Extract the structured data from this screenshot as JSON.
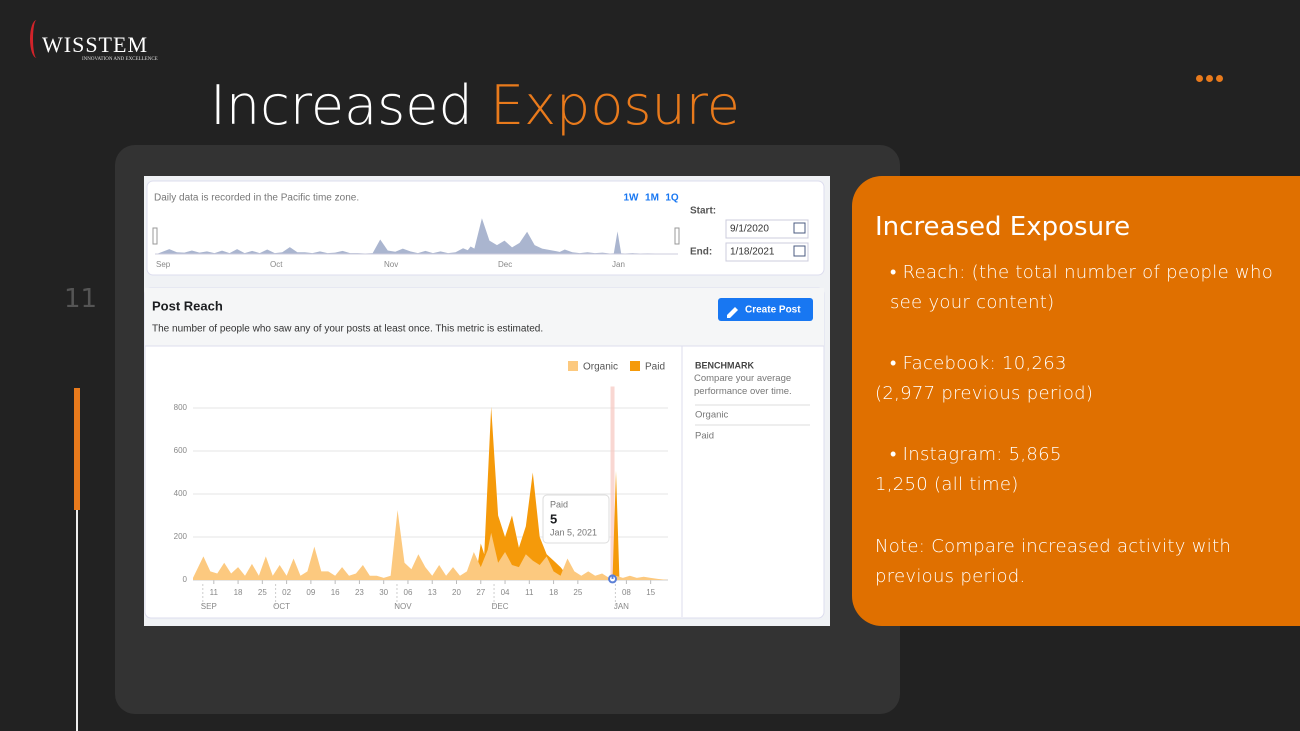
{
  "logo": {
    "name": "WISSTEM",
    "tagline": "INNOVATION AND EXCELLENCE"
  },
  "slide": {
    "title_main": "Increased",
    "title_accent": "Exposure",
    "page_number": "11"
  },
  "panel": {
    "heading": "Increased Exposure",
    "reach": "Reach: (the total number of people who see your content)",
    "facebook": "Facebook: 10,263",
    "facebook_previous": "(2,977 previous period)",
    "instagram": "Instagram: 5,865",
    "instagram_all_time": "1,250 (all time)",
    "note": "Note: Compare increased activity with previous period."
  },
  "screenshot": {
    "timezone_note": "Daily data is recorded in the Pacific time zone.",
    "ranges": [
      "1W",
      "1M",
      "1Q"
    ],
    "start_label": "Start:",
    "start_date": "9/1/2020",
    "end_label": "End:",
    "end_date": "1/18/2021",
    "navigator_months": [
      "Sep",
      "Oct",
      "Nov",
      "Dec",
      "Jan"
    ],
    "section_title": "Post Reach",
    "create_button": "Create Post",
    "description": "The number of people who saw any of your posts at least once. This metric is estimated.",
    "benchmark_title": "BENCHMARK",
    "benchmark_text": "Compare your average performance over time.",
    "benchmark_items": [
      "Organic",
      "Paid"
    ],
    "tooltip_date": "Jan 5, 2021"
  },
  "chart_data": {
    "type": "area",
    "ylim": [
      0,
      900
    ],
    "yticks": [
      0,
      200,
      400,
      600,
      800
    ],
    "xlim": [
      4,
      141
    ],
    "xticks": [
      {
        "value": 10,
        "label": "11"
      },
      {
        "value": 17,
        "label": "18"
      },
      {
        "value": 24,
        "label": "25"
      },
      {
        "value": 31,
        "label": "02"
      },
      {
        "value": 38,
        "label": "09"
      },
      {
        "value": 45,
        "label": "16"
      },
      {
        "value": 52,
        "label": "23"
      },
      {
        "value": 59,
        "label": "30"
      },
      {
        "value": 66,
        "label": "06"
      },
      {
        "value": 73,
        "label": "13"
      },
      {
        "value": 80,
        "label": "20"
      },
      {
        "value": 87,
        "label": "27"
      },
      {
        "value": 94,
        "label": "04"
      },
      {
        "value": 101,
        "label": "11"
      },
      {
        "value": 108,
        "label": "18"
      },
      {
        "value": 115,
        "label": "25"
      },
      {
        "value": 129,
        "label": "08"
      },
      {
        "value": 136,
        "label": "15"
      }
    ],
    "month_ticks": [
      {
        "value": 10,
        "label": "SEP"
      },
      {
        "value": 31,
        "label": "OCT"
      },
      {
        "value": 66,
        "label": "NOV"
      },
      {
        "value": 94,
        "label": "DEC"
      },
      {
        "value": 129,
        "label": "JAN"
      }
    ],
    "grid": true,
    "highlight_index": 19,
    "series": [
      {
        "name": "Paid",
        "color": "#f59a0a",
        "x": [
          4,
          84,
          86,
          87,
          88,
          90,
          92,
          94,
          96,
          98,
          100,
          102,
          104,
          106,
          108,
          110,
          112,
          114,
          124,
          125,
          126,
          127,
          141
        ],
        "values": [
          0,
          0,
          60,
          170,
          120,
          805,
          300,
          200,
          300,
          150,
          250,
          500,
          200,
          120,
          90,
          60,
          20,
          0,
          0,
          5,
          508,
          0,
          0
        ]
      },
      {
        "name": "Organic",
        "color": "#fcc97f",
        "x": [
          4,
          7,
          9,
          11,
          13,
          15,
          17,
          19,
          21,
          23,
          25,
          27,
          29,
          31,
          33,
          35,
          37,
          39,
          41,
          43,
          45,
          47,
          49,
          51,
          53,
          55,
          57,
          59,
          61,
          63,
          65,
          67,
          69,
          71,
          73,
          75,
          77,
          79,
          81,
          83,
          85,
          87,
          89,
          90,
          92,
          94,
          96,
          98,
          100,
          102,
          104,
          106,
          108,
          110,
          112,
          114,
          116,
          118,
          120,
          122,
          124,
          126,
          128,
          130,
          132,
          134,
          136,
          138,
          141
        ],
        "values": [
          10,
          110,
          40,
          30,
          80,
          30,
          60,
          20,
          75,
          20,
          110,
          20,
          70,
          20,
          100,
          20,
          40,
          155,
          40,
          40,
          20,
          60,
          20,
          30,
          70,
          20,
          20,
          10,
          20,
          325,
          80,
          50,
          120,
          60,
          20,
          70,
          20,
          60,
          20,
          40,
          130,
          60,
          140,
          220,
          80,
          130,
          70,
          60,
          120,
          90,
          70,
          110,
          40,
          20,
          100,
          40,
          20,
          40,
          20,
          30,
          10,
          20,
          10,
          20,
          10,
          15,
          10,
          5,
          0
        ]
      }
    ]
  }
}
